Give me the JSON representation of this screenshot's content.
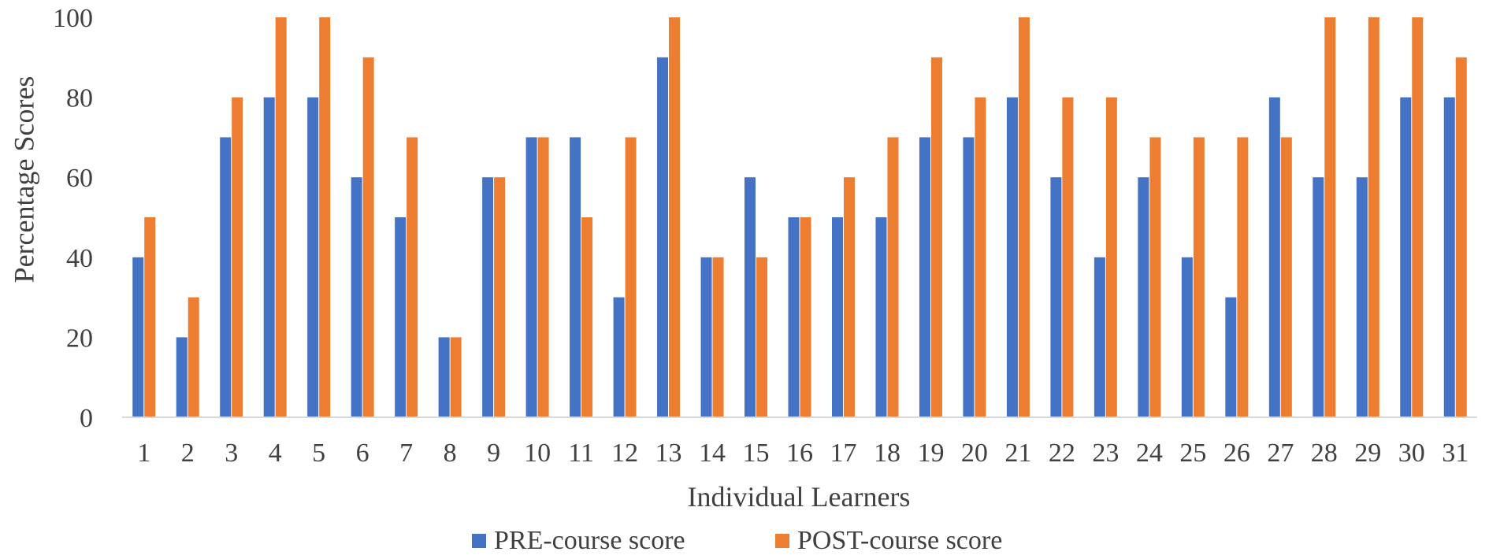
{
  "chart_data": {
    "type": "bar",
    "title": "",
    "xlabel": "Individual Learners",
    "ylabel": "Percentage Scores",
    "ylim": [
      0,
      100
    ],
    "yticks": [
      0,
      20,
      40,
      60,
      80,
      100
    ],
    "grid": false,
    "legend_position": "bottom",
    "categories": [
      "1",
      "2",
      "3",
      "4",
      "5",
      "6",
      "7",
      "8",
      "9",
      "10",
      "11",
      "12",
      "13",
      "14",
      "15",
      "16",
      "17",
      "18",
      "19",
      "20",
      "21",
      "22",
      "23",
      "24",
      "25",
      "26",
      "27",
      "28",
      "29",
      "30",
      "31"
    ],
    "series": [
      {
        "name": "PRE-course score",
        "color": "#4472C4",
        "values": [
          40,
          20,
          70,
          80,
          80,
          60,
          50,
          20,
          60,
          70,
          70,
          30,
          90,
          40,
          60,
          50,
          50,
          50,
          70,
          70,
          80,
          60,
          40,
          60,
          40,
          30,
          80,
          60,
          60,
          80,
          80
        ]
      },
      {
        "name": "POST-course score",
        "color": "#ED7D31",
        "values": [
          50,
          30,
          80,
          100,
          100,
          90,
          70,
          20,
          60,
          70,
          50,
          70,
          100,
          40,
          40,
          50,
          60,
          70,
          90,
          80,
          100,
          80,
          80,
          70,
          70,
          70,
          70,
          100,
          100,
          100,
          90
        ]
      }
    ]
  }
}
